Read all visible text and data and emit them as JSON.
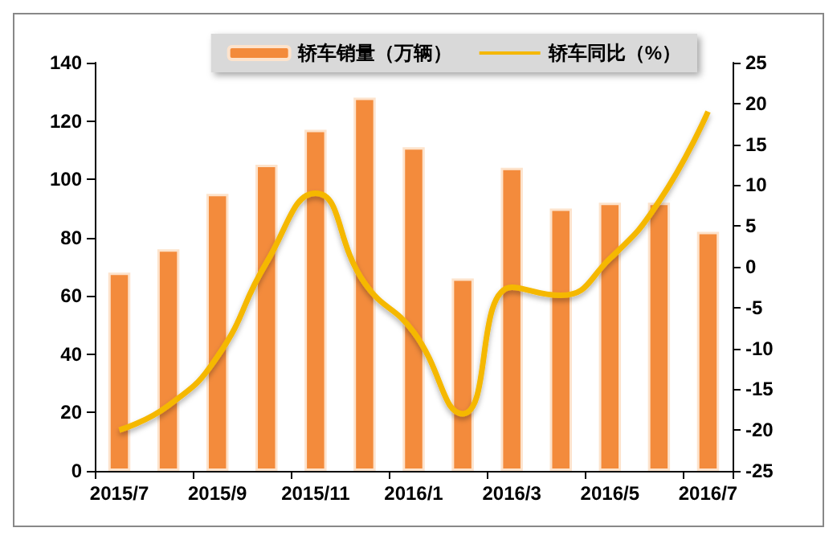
{
  "chart_data": {
    "type": "bar",
    "categories": [
      "2015/7",
      null,
      "2015/9",
      null,
      "2015/11",
      null,
      "2016/1",
      null,
      "2016/3",
      null,
      "2016/5",
      null,
      "2016/7"
    ],
    "series": [
      {
        "name": "轿车销量（万辆）",
        "color": "#f38b3c",
        "values": [
          68,
          76,
          95,
          105,
          117,
          128,
          111,
          66,
          104,
          90,
          92,
          92,
          82
        ]
      },
      {
        "name": "轿车同比（%）",
        "type": "line",
        "axis": "y2",
        "color": "#f5b800",
        "values": [
          -20,
          -17,
          -11,
          0.5,
          9,
          -2,
          -8,
          -18,
          -2.5,
          -3.5,
          1,
          8,
          19
        ]
      }
    ],
    "ylim": [
      0,
      140
    ],
    "yticks": [
      0,
      20,
      40,
      60,
      80,
      100,
      120,
      140
    ],
    "y2lim": [
      -25,
      25
    ],
    "y2ticks": [
      -25,
      -20,
      -15,
      -10,
      -5,
      0,
      5,
      10,
      15,
      20,
      25
    ],
    "grid": false,
    "legend": "top right",
    "marker": "none"
  }
}
